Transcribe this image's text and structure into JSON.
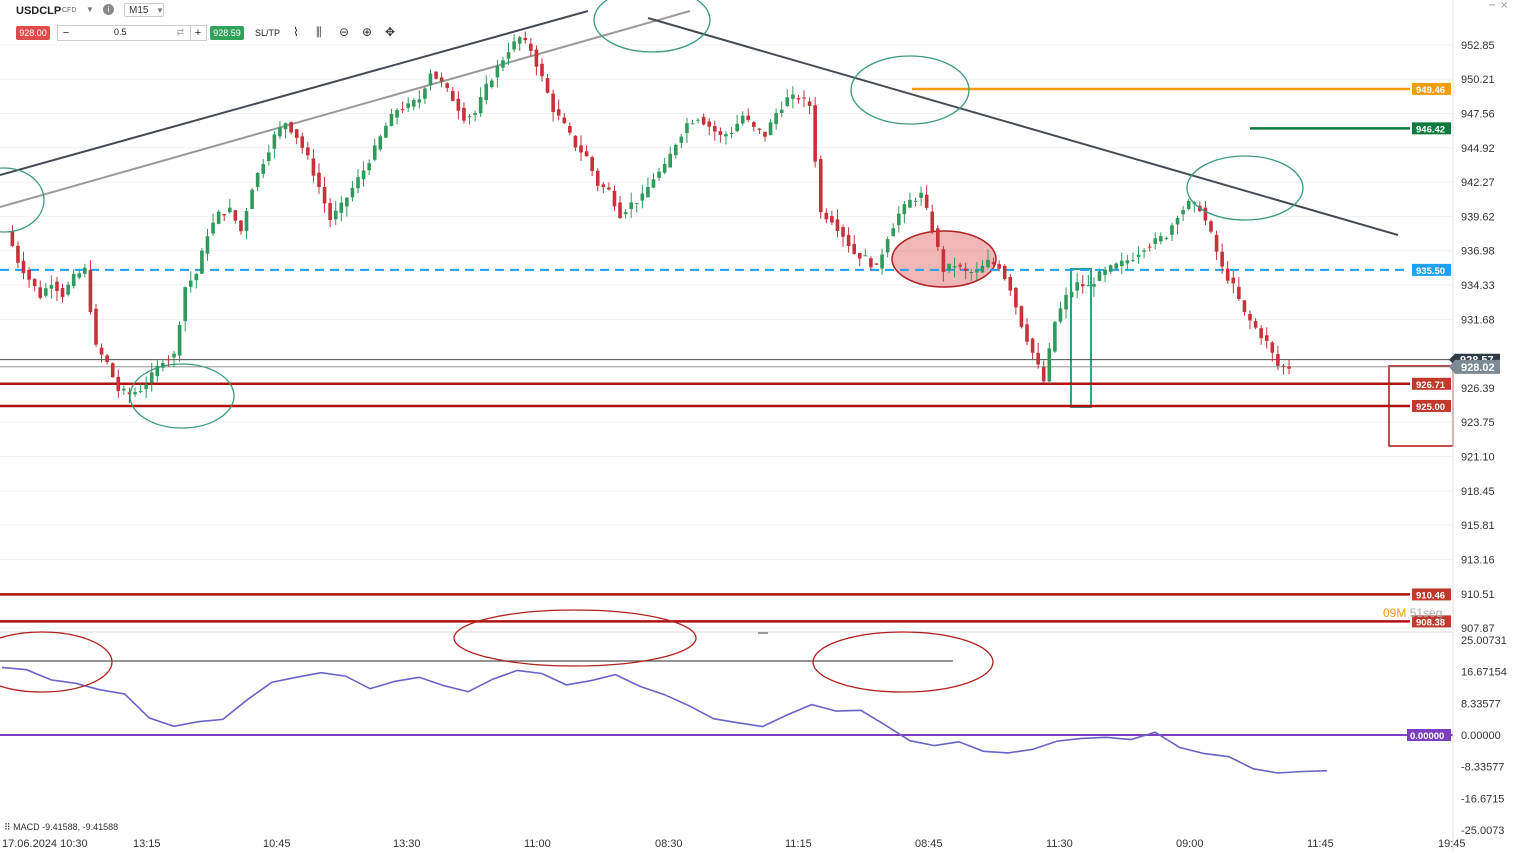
{
  "toolbar": {
    "symbol": "USDCLP",
    "instrument_type": "CFD",
    "timeframe": "M15",
    "sell_price": "928.00",
    "quantity": "0.5",
    "buy_price": "928.59",
    "sltp_label": "SL/TP",
    "minus": "−",
    "plus": "+",
    "icons": [
      "info-icon",
      "line-chart-icon",
      "candles-icon",
      "zoom-out-icon",
      "zoom-in-icon",
      "crosshair-icon"
    ]
  },
  "window_controls": {
    "minimize": "−",
    "close": "×"
  },
  "colors": {
    "bull": "#2f9a5b",
    "bear": "#c8313a",
    "support": "#b01010",
    "dashed": "#1da1f2",
    "orange": "#f39c12",
    "green_line": "#0c7a3e",
    "trend": "#444b55",
    "trend_light": "#9a9a9a",
    "macd": "#6a63c7",
    "zero": "#7b3fbf",
    "ellipse_green": "#3a9a7a",
    "ellipse_red": "#b02020"
  },
  "price_axis": [
    "952.85",
    "950.21",
    "947.56",
    "944.92",
    "942.27",
    "939.62",
    "936.98",
    "934.33",
    "931.68",
    "926.39",
    "923.75",
    "921.10",
    "918.45",
    "915.81",
    "913.16",
    "910.51",
    "907.87"
  ],
  "price_tags": [
    {
      "value": "949.46",
      "color": "#f39c12"
    },
    {
      "value": "946.42",
      "color": "#0c7a3e"
    },
    {
      "value": "935.50",
      "color": "#1da1f2"
    },
    {
      "value": "928.02",
      "color": "#7d8a96"
    },
    {
      "value": "926.71",
      "color": "#c0392b"
    },
    {
      "value": "925.00",
      "color": "#c0392b"
    },
    {
      "value": "910.46",
      "color": "#c0392b"
    },
    {
      "value": "908.38",
      "color": "#c0392b"
    }
  ],
  "hidden_tag": "928.57",
  "macd_axis": [
    "25.00731",
    "16.67154",
    "8.33577",
    "0.00000",
    "-8.33577",
    "-16.6715",
    "-25.0073"
  ],
  "macd_zero_tag": "0.00000",
  "macd_label": "MACD -9.41588, -9.41588",
  "time_axis": [
    "17.06.2024 10:30",
    "13:15",
    "10:45",
    "13:30",
    "11:00",
    "08:30",
    "11:15",
    "08:45",
    "11:30",
    "09:00",
    "11:45",
    "19:45"
  ],
  "countdown": {
    "minutes": "09M",
    "seconds": "51seg"
  },
  "chart_data": {
    "type": "candlestick",
    "symbol": "USDCLP",
    "timeframe": "M15",
    "ylim": [
      906.8,
      955.0
    ],
    "horizontal_levels": [
      949.46,
      946.42,
      935.5,
      926.71,
      925.0,
      910.46,
      908.38
    ],
    "last_price": 928.02,
    "close_path": [
      938.5,
      936.2,
      934.8,
      933.5,
      934.6,
      933.6,
      934.9,
      935.5,
      929.5,
      928.3,
      926.2,
      925.9,
      926.3,
      927.3,
      928.6,
      928.9,
      934.2,
      935.2,
      938.3,
      939.8,
      940.1,
      938.5,
      941.9,
      943.9,
      945.8,
      946.9,
      945.8,
      944.1,
      941.9,
      939.4,
      940.4,
      941.8,
      943.2,
      944.8,
      946.6,
      947.9,
      948.1,
      948.7,
      950.8,
      949.9,
      948.7,
      947.3,
      947.6,
      949.6,
      951.1,
      952.5,
      953.4,
      952.5,
      950.3,
      947.9,
      946.6,
      945.1,
      944.2,
      942.1,
      941.6,
      939.8,
      940.6,
      941.1,
      942.6,
      943.4,
      945.3,
      946.8,
      947.3,
      946.6,
      945.8,
      946.2,
      947.4,
      946.4,
      945.9,
      947.6,
      948.7,
      948.8,
      948.2,
      939.9,
      939.4,
      938.2,
      936.8,
      936.4,
      935.6,
      938.1,
      939.8,
      940.8,
      941.3,
      938.7,
      935.5,
      935.9,
      935.3,
      935.3,
      936.1,
      935.8,
      934.1,
      931.3,
      929.1,
      926.9,
      931.5,
      933.4,
      934.4,
      934.2,
      935.1,
      935.6,
      936.0,
      936.5,
      937.3,
      937.7,
      938.2,
      939.8,
      940.6,
      940.3,
      938.2,
      935.6,
      934.2,
      932.1,
      931.0,
      929.9,
      928.1,
      928.0
    ],
    "macd_path": [
      17.8,
      17.2,
      14.5,
      13.6,
      11.9,
      10.8,
      4.5,
      2.3,
      3.5,
      4.1,
      9.3,
      13.9,
      15.2,
      16.4,
      15.5,
      12.2,
      14.1,
      15.2,
      13.0,
      11.4,
      14.7,
      17.0,
      16.2,
      13.2,
      14.3,
      15.9,
      12.8,
      10.6,
      7.7,
      4.3,
      3.2,
      2.2,
      5.3,
      8.0,
      6.3,
      6.5,
      2.6,
      -1.5,
      -2.8,
      -1.8,
      -4.3,
      -4.7,
      -3.8,
      -1.6,
      -0.9,
      -0.6,
      -1.2,
      0.7,
      -3.3,
      -4.9,
      -5.7,
      -8.9,
      -10.0,
      -9.6,
      -9.4
    ],
    "macd_ylim": [
      -25.00731,
      25.00731
    ]
  }
}
